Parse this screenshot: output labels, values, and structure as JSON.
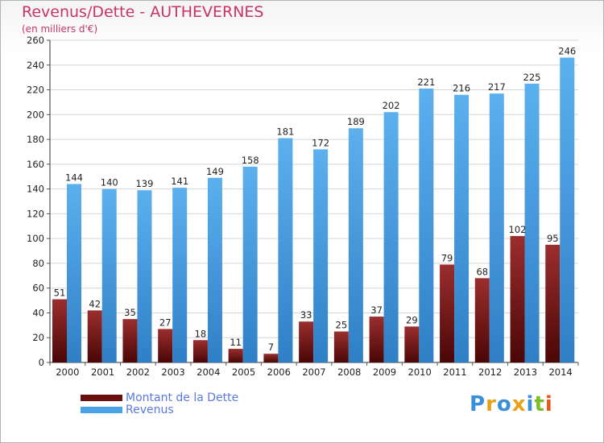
{
  "header": {
    "title": "Revenus/Dette - AUTHEVERNES",
    "subtitle": "(en milliers d'€)"
  },
  "chart_data": {
    "type": "bar",
    "categories": [
      "2000",
      "2001",
      "2002",
      "2003",
      "2004",
      "2005",
      "2006",
      "2007",
      "2008",
      "2009",
      "2010",
      "2011",
      "2012",
      "2013",
      "2014"
    ],
    "series": [
      {
        "name": "Montant de la Dette",
        "color": "#7a1a1a",
        "values": [
          51,
          42,
          35,
          27,
          18,
          11,
          7,
          33,
          25,
          37,
          29,
          79,
          68,
          102,
          95
        ]
      },
      {
        "name": "Revenus",
        "color": "#4aa3e6",
        "values": [
          144,
          140,
          139,
          141,
          149,
          158,
          181,
          172,
          189,
          202,
          221,
          216,
          217,
          225,
          246
        ]
      }
    ],
    "yticks": [
      0,
      20,
      40,
      60,
      80,
      100,
      120,
      140,
      160,
      180,
      200,
      220,
      240,
      260
    ],
    "ylim": [
      0,
      260
    ],
    "grid": true,
    "legend_position": "bottom-left"
  },
  "legend": {
    "items": [
      {
        "label": "Montant de la Dette",
        "color": "#6b0f0f"
      },
      {
        "label": "Revenus",
        "color": "#4aa3e6"
      }
    ]
  },
  "logo": {
    "letters": [
      "P",
      "r",
      "o",
      "x",
      "i",
      "t",
      "i"
    ],
    "colors": [
      "#3a8fd8",
      "#e8a21a",
      "#3a8fd8",
      "#e8a21a",
      "#3a8fd8",
      "#7bbd2b",
      "#e85a1a"
    ]
  }
}
